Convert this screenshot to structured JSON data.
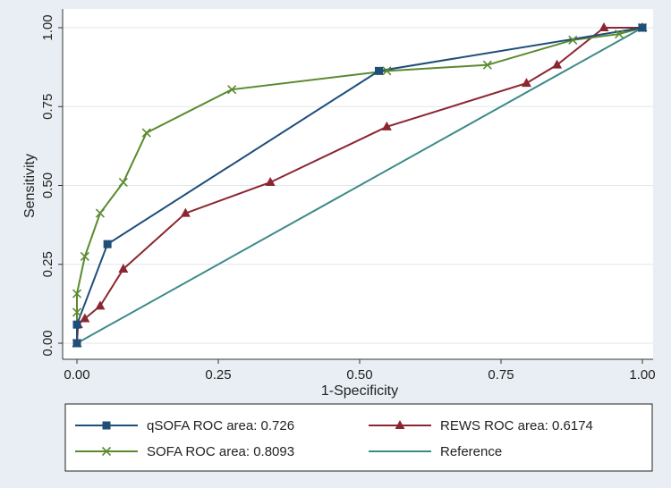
{
  "chart_data": {
    "type": "line",
    "title": "",
    "xlabel": "1-Specificity",
    "ylabel": "Sensitivity",
    "xlim": [
      0,
      1
    ],
    "ylim": [
      0,
      1
    ],
    "xticks": [
      0,
      0.25,
      0.5,
      0.75,
      1
    ],
    "yticks": [
      0,
      0.25,
      0.5,
      0.75,
      1
    ],
    "xtick_labels": [
      "0.00",
      "0.25",
      "0.50",
      "0.75",
      "1.00"
    ],
    "ytick_labels": [
      "0.00",
      "0.25",
      "0.50",
      "0.75",
      "1.00"
    ],
    "grid": "horizontal",
    "legend_position": "bottom",
    "series": [
      {
        "name": "qSOFA ROC area: 0.726",
        "color": "#1f4e79",
        "marker": "square",
        "x": [
          0,
          0,
          0.054,
          0.534,
          1
        ],
        "y": [
          0,
          0.059,
          0.314,
          0.863,
          1
        ]
      },
      {
        "name": "REWS ROC area: 0.6174",
        "color": "#8b2630",
        "marker": "triangle",
        "x": [
          0,
          0.002,
          0.014,
          0.041,
          0.082,
          0.192,
          0.342,
          0.548,
          0.795,
          0.849,
          0.932,
          1
        ],
        "y": [
          0,
          0.059,
          0.078,
          0.118,
          0.235,
          0.412,
          0.51,
          0.686,
          0.824,
          0.882,
          1,
          1
        ]
      },
      {
        "name": "SOFA ROC area: 0.8093",
        "color": "#5a8a2f",
        "marker": "x",
        "x": [
          0,
          0,
          0,
          0.014,
          0.041,
          0.082,
          0.123,
          0.274,
          0.548,
          0.726,
          0.877,
          0.959,
          1
        ],
        "y": [
          0,
          0.098,
          0.157,
          0.275,
          0.412,
          0.51,
          0.667,
          0.804,
          0.863,
          0.882,
          0.961,
          0.98,
          1
        ]
      },
      {
        "name": "Reference",
        "color": "#3d8a88",
        "marker": "none",
        "x": [
          0,
          1
        ],
        "y": [
          0,
          1
        ]
      }
    ]
  }
}
